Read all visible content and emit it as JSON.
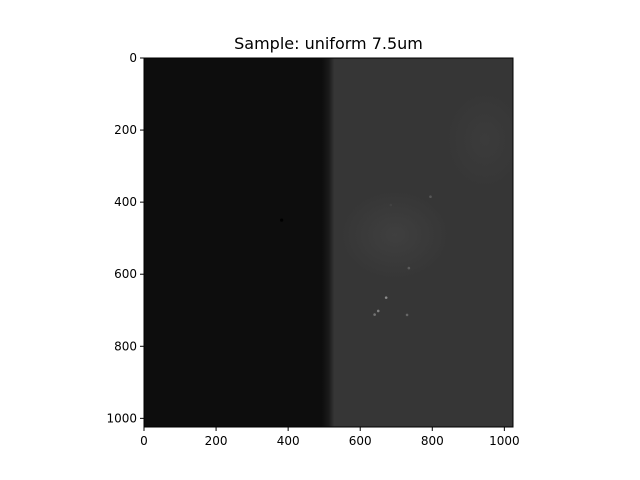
{
  "chart_data": {
    "type": "heatmap",
    "title": "Sample: uniform 7.5um",
    "xlabel": "",
    "ylabel": "",
    "colormap": "gray",
    "image_shape": [
      1024,
      1024
    ],
    "xlim": [
      0,
      1024
    ],
    "ylim": [
      1024,
      0
    ],
    "x_ticks": [
      0,
      200,
      400,
      600,
      800,
      1000
    ],
    "y_ticks": [
      0,
      200,
      400,
      600,
      800,
      1000
    ],
    "grid": false,
    "regions": [
      {
        "name": "dark-left-region",
        "x_range": [
          0,
          520
        ],
        "intensity": 0.05
      },
      {
        "name": "bright-right-region",
        "x_range": [
          520,
          1024
        ],
        "intensity": 0.21
      }
    ],
    "features": [
      {
        "x": 382,
        "y": 450,
        "intensity": 0.0
      },
      {
        "x": 795,
        "y": 385,
        "intensity": 0.34
      },
      {
        "x": 685,
        "y": 408,
        "intensity": 0.26
      },
      {
        "x": 735,
        "y": 583,
        "intensity": 0.36
      },
      {
        "x": 672,
        "y": 665,
        "intensity": 0.55
      },
      {
        "x": 650,
        "y": 702,
        "intensity": 0.5
      },
      {
        "x": 640,
        "y": 712,
        "intensity": 0.45
      },
      {
        "x": 730,
        "y": 713,
        "intensity": 0.4
      }
    ]
  }
}
